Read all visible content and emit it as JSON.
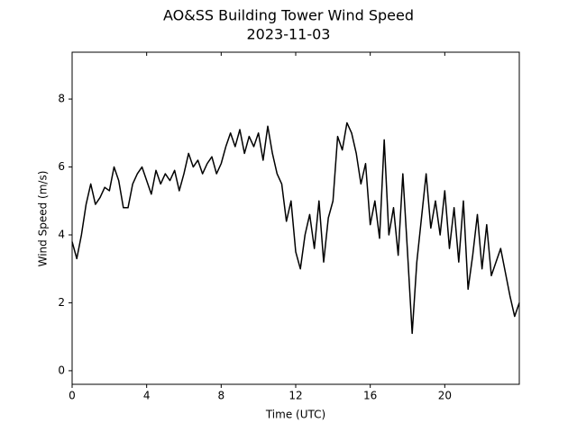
{
  "chart_data": {
    "type": "line",
    "title": "AO&SS Building Tower Wind Speed",
    "subtitle": "2023-11-03",
    "x_label": "Time (UTC)",
    "y_label": "Wind Speed (m/s)",
    "x": [
      0,
      0.25,
      0.5,
      0.75,
      1,
      1.25,
      1.5,
      1.75,
      2,
      2.25,
      2.5,
      2.75,
      3,
      3.25,
      3.5,
      3.75,
      4,
      4.25,
      4.5,
      4.75,
      5,
      5.25,
      5.5,
      5.75,
      6,
      6.25,
      6.5,
      6.75,
      7,
      7.25,
      7.5,
      7.75,
      8,
      8.25,
      8.5,
      8.75,
      9,
      9.25,
      9.5,
      9.75,
      10,
      10.25,
      10.5,
      10.75,
      11,
      11.25,
      11.5,
      11.75,
      12,
      12.25,
      12.5,
      12.75,
      13,
      13.25,
      13.5,
      13.75,
      14,
      14.25,
      14.5,
      14.75,
      15,
      15.25,
      15.5,
      15.75,
      16,
      16.25,
      16.5,
      16.75,
      17,
      17.25,
      17.5,
      17.75,
      18,
      18.25,
      18.5,
      18.75,
      19,
      19.25,
      19.5,
      19.75,
      20,
      20.25,
      20.5,
      20.75,
      21,
      21.25,
      21.5,
      21.75,
      22,
      22.25,
      22.5,
      22.75,
      23,
      23.25,
      23.5,
      23.75,
      24
    ],
    "series": [
      {
        "name": "Wind Speed",
        "color": "#000000",
        "values": [
          3.8,
          3.3,
          4.0,
          4.9,
          5.5,
          4.9,
          5.1,
          5.4,
          5.3,
          6.0,
          5.6,
          4.8,
          4.8,
          5.5,
          5.8,
          6.0,
          5.6,
          5.2,
          5.9,
          5.5,
          5.8,
          5.6,
          5.9,
          5.3,
          5.8,
          6.4,
          6.0,
          6.2,
          5.8,
          6.1,
          6.3,
          5.8,
          6.1,
          6.6,
          7.0,
          6.6,
          7.1,
          6.4,
          6.9,
          6.6,
          7.0,
          6.2,
          7.2,
          6.4,
          5.8,
          5.5,
          4.4,
          5.0,
          3.5,
          3.0,
          4.0,
          4.6,
          3.6,
          5.0,
          3.2,
          4.5,
          5.0,
          6.9,
          6.5,
          7.3,
          7.0,
          6.4,
          5.5,
          6.1,
          4.3,
          5.0,
          3.9,
          6.8,
          4.0,
          4.8,
          3.4,
          5.8,
          3.5,
          1.1,
          3.2,
          4.5,
          5.8,
          4.2,
          5.0,
          4.0,
          5.3,
          3.6,
          4.8,
          3.2,
          5.0,
          2.4,
          3.4,
          4.6,
          3.0,
          4.3,
          2.8,
          3.2,
          3.6,
          2.9,
          2.2,
          1.6,
          2.0
        ]
      }
    ],
    "xlim": [
      0,
      24
    ],
    "xticks": [
      0,
      4,
      8,
      12,
      16,
      20
    ],
    "ylim": [
      -0.4,
      9.38
    ],
    "yticks": [
      0,
      2,
      4,
      6,
      8
    ],
    "grid": false
  }
}
